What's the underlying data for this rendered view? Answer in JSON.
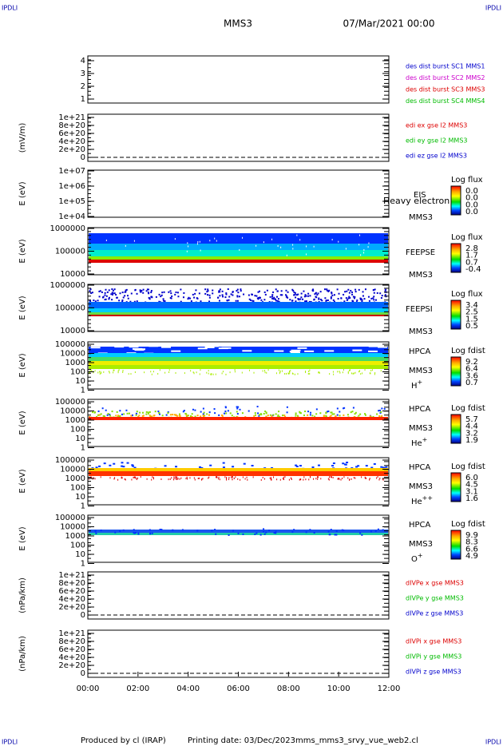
{
  "header": {
    "corner_left": "IPDLI",
    "corner_right": "IPDLI",
    "mission": "MMS3",
    "date": "07/Mar/2021 00:00"
  },
  "footer": {
    "corner_left": "IPDLI",
    "corner_right": "IPDLI",
    "produced": "Produced by cl (IRAP)",
    "printing": "Printing date: 03/Dec/2023",
    "file": "mms_mms3_srvy_vue_web2.cl"
  },
  "xticks": [
    "00:00",
    "02:00",
    "04:00",
    "06:00",
    "08:00",
    "10:00",
    "12:00"
  ],
  "panels": [
    {
      "yticks": [
        "4",
        "3",
        "2",
        "1"
      ],
      "labels": [
        {
          "text": "des dist burst SC1 MMS1",
          "color": "#0000cc"
        },
        {
          "text": "des dist burst SC2 MMS2",
          "color": "#cc00cc"
        },
        {
          "text": "des dist burst SC3 MMS3",
          "color": "#dd0000"
        },
        {
          "text": "des dist burst SC4 MMS4",
          "color": "#00bb00"
        }
      ]
    },
    {
      "ylabel": "(mV/m)",
      "yticks": [
        "1e+21",
        "8e+20",
        "6e+20",
        "4e+20",
        "2e+20",
        "0"
      ],
      "labels": [
        {
          "text": "edi ex gse l2 MMS3",
          "color": "#dd0000"
        },
        {
          "text": "edi ey gse l2 MMS3",
          "color": "#00bb00"
        },
        {
          "text": "edi ez gse l2 MMS3",
          "color": "#0000cc"
        }
      ]
    },
    {
      "ylabel": "E (eV)",
      "yticks": [
        "1e+07",
        "1e+06",
        "1e+05",
        "1e+04"
      ],
      "instrument": "EIS",
      "spacecraft": "MMS3",
      "note": "Heavy electron to",
      "colorbar": {
        "title": "Log flux",
        "ticks": [
          "0.0",
          "0.0",
          "0.0",
          "0.0"
        ]
      }
    },
    {
      "ylabel": "E (eV)",
      "yticks": [
        "1000000",
        "100000",
        "10000"
      ],
      "instrument": "FEEPSE",
      "spacecraft": "MMS3",
      "colorbar": {
        "title": "Log flux",
        "ticks": [
          "2.8",
          "1.7",
          "0.7",
          "-0.4"
        ]
      }
    },
    {
      "ylabel": "E (eV)",
      "yticks": [
        "1000000",
        "100000",
        "10000"
      ],
      "instrument": "FEEPSI",
      "spacecraft": "MMS3",
      "colorbar": {
        "title": "Log flux",
        "ticks": [
          "3.4",
          "2.5",
          "1.5",
          "0.5"
        ]
      }
    },
    {
      "ylabel": "E (eV)",
      "yticks": [
        "100000",
        "10000",
        "1000",
        "100",
        "10",
        "1"
      ],
      "instrument": "HPCA",
      "spacecraft": "MMS3",
      "species": "H",
      "charge": "+",
      "colorbar": {
        "title": "Log fdist",
        "ticks": [
          "9.2",
          "6.4",
          "3.6",
          "0.7"
        ]
      }
    },
    {
      "ylabel": "E (eV)",
      "yticks": [
        "100000",
        "10000",
        "1000",
        "100",
        "10",
        "1"
      ],
      "instrument": "HPCA",
      "spacecraft": "MMS3",
      "species": "He",
      "charge": "+",
      "colorbar": {
        "title": "Log fdist",
        "ticks": [
          "5.7",
          "4.4",
          "3.2",
          "1.9"
        ]
      }
    },
    {
      "ylabel": "E (eV)",
      "yticks": [
        "100000",
        "10000",
        "1000",
        "100",
        "10",
        "1"
      ],
      "instrument": "HPCA",
      "spacecraft": "MMS3",
      "species": "He",
      "charge": "++",
      "colorbar": {
        "title": "Log fdist",
        "ticks": [
          "6.0",
          "4.5",
          "3.1",
          "1.6"
        ]
      }
    },
    {
      "ylabel": "E (eV)",
      "yticks": [
        "100000",
        "10000",
        "1000",
        "100",
        "10",
        "1"
      ],
      "instrument": "HPCA",
      "spacecraft": "MMS3",
      "species": "O",
      "charge": "+",
      "colorbar": {
        "title": "Log fdist",
        "ticks": [
          "9.9",
          "8.3",
          "6.6",
          "4.9"
        ]
      }
    },
    {
      "ylabel": "(nPa/km)",
      "yticks": [
        "1e+21",
        "8e+20",
        "6e+20",
        "4e+20",
        "2e+20",
        "0"
      ],
      "labels": [
        {
          "text": "dIVPe x gse MMS3",
          "color": "#dd0000"
        },
        {
          "text": "dIVPe y gse MMS3",
          "color": "#00bb00"
        },
        {
          "text": "dIVPe z gse MMS3",
          "color": "#0000cc"
        }
      ]
    },
    {
      "ylabel": "(nPa/km)",
      "yticks": [
        "1e+21",
        "8e+20",
        "6e+20",
        "4e+20",
        "2e+20",
        "0"
      ],
      "labels": [
        {
          "text": "dIVPi x gse MMS3",
          "color": "#dd0000"
        },
        {
          "text": "dIVPi y gse MMS3",
          "color": "#00bb00"
        },
        {
          "text": "dIVPi z gse MMS3",
          "color": "#0000cc"
        }
      ]
    }
  ]
}
